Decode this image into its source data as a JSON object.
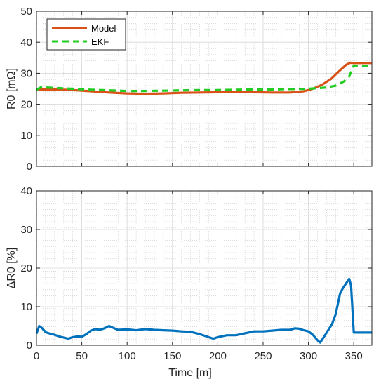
{
  "colors": {
    "model": "#d95319",
    "ekf": "#22cc22",
    "delta": "#0072bd",
    "axes": "#262626",
    "minor_grid": "#c8c8c8",
    "major_grid": "#d8d8d8"
  },
  "chart_data": [
    {
      "type": "line",
      "ylabel": "R0  [mΩ]",
      "xlim": [
        0,
        370
      ],
      "ylim": [
        0,
        50
      ],
      "xticks": [
        0,
        50,
        100,
        150,
        200,
        250,
        300,
        350
      ],
      "yticks": [
        0,
        10,
        20,
        30,
        40,
        50
      ],
      "xtick_labels_shown": false,
      "grid": "major and minor",
      "legend": "top-left",
      "series": [
        {
          "name": "Model",
          "style": "solid",
          "x": [
            0,
            20,
            40,
            60,
            80,
            100,
            120,
            140,
            160,
            180,
            200,
            220,
            240,
            260,
            280,
            295,
            305,
            315,
            325,
            335,
            342,
            346,
            350,
            360,
            370
          ],
          "y": [
            24.8,
            24.8,
            24.6,
            24.2,
            23.8,
            23.5,
            23.4,
            23.5,
            23.7,
            23.8,
            23.9,
            24.0,
            23.9,
            23.8,
            23.8,
            24.2,
            25.0,
            26.3,
            28.2,
            31.0,
            32.8,
            33.4,
            33.3,
            33.3,
            33.3
          ]
        },
        {
          "name": "EKF",
          "style": "dashed",
          "x": [
            0,
            5,
            20,
            40,
            60,
            80,
            100,
            120,
            140,
            160,
            180,
            200,
            220,
            240,
            260,
            280,
            300,
            310,
            320,
            330,
            335,
            340,
            345,
            350,
            360,
            370
          ],
          "y": [
            24.7,
            25.5,
            25.3,
            25.0,
            24.7,
            24.5,
            24.3,
            24.3,
            24.4,
            24.5,
            24.6,
            24.6,
            24.7,
            24.8,
            24.8,
            24.9,
            25.0,
            25.2,
            25.4,
            26.0,
            26.7,
            27.5,
            29.0,
            32.5,
            32.3,
            32.2
          ]
        }
      ]
    },
    {
      "type": "line",
      "xlabel": "Time [m]",
      "ylabel": "ΔR0 [%]",
      "xlim": [
        0,
        370
      ],
      "ylim": [
        0,
        40
      ],
      "xticks": [
        0,
        50,
        100,
        150,
        200,
        250,
        300,
        350
      ],
      "yticks": [
        0,
        10,
        20,
        30,
        40
      ],
      "grid": "major and minor",
      "series": [
        {
          "style": "solid",
          "x": [
            0,
            3,
            6,
            10,
            15,
            20,
            25,
            30,
            35,
            40,
            45,
            50,
            55,
            60,
            65,
            70,
            75,
            80,
            85,
            90,
            100,
            110,
            120,
            130,
            140,
            150,
            160,
            170,
            180,
            190,
            195,
            200,
            210,
            220,
            230,
            240,
            250,
            260,
            270,
            280,
            285,
            290,
            295,
            300,
            305,
            310,
            313,
            318,
            322,
            326,
            330,
            335,
            338,
            342,
            345,
            347,
            350,
            360,
            370
          ],
          "y": [
            3.0,
            5.0,
            4.5,
            3.4,
            3.0,
            2.7,
            2.3,
            2.0,
            1.7,
            2.1,
            2.3,
            2.2,
            2.9,
            3.8,
            4.2,
            4.0,
            4.4,
            5.0,
            4.5,
            4.0,
            4.1,
            3.9,
            4.2,
            4.0,
            3.9,
            3.8,
            3.6,
            3.5,
            2.9,
            2.1,
            1.7,
            2.1,
            2.6,
            2.6,
            3.1,
            3.6,
            3.6,
            3.8,
            4.0,
            4.0,
            4.4,
            4.3,
            3.9,
            3.6,
            2.7,
            1.3,
            0.7,
            2.5,
            4.0,
            5.5,
            8.0,
            13.5,
            14.8,
            16.2,
            17.2,
            15.5,
            3.3,
            3.3,
            3.3
          ]
        }
      ]
    }
  ]
}
